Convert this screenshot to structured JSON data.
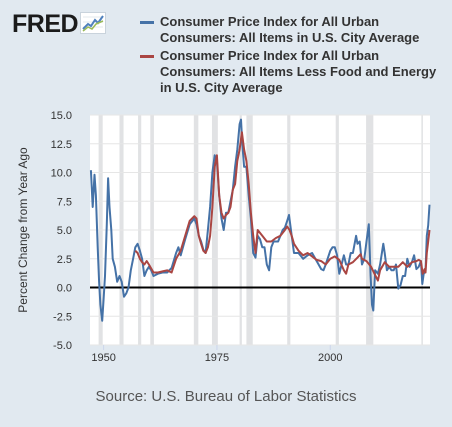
{
  "header": {
    "logo_text": "FRED",
    "logo_icon": "line-chart-icon"
  },
  "legend": [
    {
      "label": "Consumer Price Index for All Urban Consumers: All Items in U.S. City Average",
      "color": "#4572a7"
    },
    {
      "label": "Consumer Price Index for All Urban Consumers: All Items Less Food and Energy in U.S. City Average",
      "color": "#aa4643"
    }
  ],
  "footer": {
    "source": "Source: U.S. Bureau of Labor Statistics"
  },
  "chart_data": {
    "type": "line",
    "title": "",
    "xlabel": "",
    "ylabel": "Percent Change from Year Ago",
    "xlim": [
      1947,
      2022
    ],
    "ylim": [
      -5.0,
      15.0
    ],
    "yticks": [
      15.0,
      12.5,
      10.0,
      7.5,
      5.0,
      2.5,
      0.0,
      -2.5,
      -5.0
    ],
    "ytick_labels": [
      "15.0",
      "12.5",
      "10.0",
      "7.5",
      "5.0",
      "2.5",
      "0.0",
      "-2.5",
      "-5.0"
    ],
    "xticks": [
      1950,
      1975,
      2000
    ],
    "xtick_labels": [
      "1950",
      "1975",
      "2000"
    ],
    "grid": "horizontal",
    "zero_line": true,
    "recession_shading": [
      [
        1948.9,
        1949.8
      ],
      [
        1953.5,
        1954.4
      ],
      [
        1957.6,
        1958.3
      ],
      [
        1960.3,
        1961.1
      ],
      [
        1969.9,
        1970.9
      ],
      [
        1973.9,
        1975.2
      ],
      [
        1980.0,
        1980.5
      ],
      [
        1981.5,
        1982.9
      ],
      [
        1990.5,
        1991.2
      ],
      [
        2001.2,
        2001.9
      ],
      [
        2007.9,
        2009.5
      ],
      [
        2020.1,
        2020.4
      ]
    ],
    "series": [
      {
        "name": "Consumer Price Index for All Urban Consumers: All Items in U.S. City Average",
        "color": "#4572a7",
        "x": [
          1947.2,
          1947.6,
          1948.0,
          1948.3,
          1948.7,
          1949.0,
          1949.3,
          1949.7,
          1950.0,
          1950.3,
          1950.7,
          1951.0,
          1951.3,
          1951.7,
          1952.0,
          1952.5,
          1953.0,
          1953.5,
          1954.0,
          1954.5,
          1955.0,
          1955.5,
          1956.0,
          1956.5,
          1957.0,
          1957.5,
          1958.0,
          1958.5,
          1959.0,
          1959.5,
          1960.0,
          1960.5,
          1961.0,
          1962.0,
          1963.0,
          1964.0,
          1965.0,
          1966.0,
          1966.5,
          1967.0,
          1968.0,
          1969.0,
          1970.0,
          1970.5,
          1971.0,
          1971.5,
          1972.0,
          1972.5,
          1973.0,
          1973.5,
          1974.0,
          1974.5,
          1975.0,
          1975.5,
          1976.0,
          1976.5,
          1977.0,
          1977.5,
          1978.0,
          1978.5,
          1979.0,
          1979.5,
          1980.0,
          1980.3,
          1980.6,
          1981.0,
          1981.5,
          1982.0,
          1982.5,
          1983.0,
          1983.5,
          1984.0,
          1984.5,
          1985.0,
          1985.5,
          1986.0,
          1986.5,
          1987.0,
          1987.5,
          1988.0,
          1988.5,
          1989.0,
          1989.5,
          1990.0,
          1990.5,
          1990.9,
          1991.5,
          1992.0,
          1993.0,
          1994.0,
          1995.0,
          1996.0,
          1997.0,
          1998.0,
          1998.5,
          1999.0,
          2000.0,
          2000.5,
          2001.0,
          2001.5,
          2002.0,
          2002.5,
          2003.0,
          2003.5,
          2004.0,
          2004.5,
          2005.0,
          2005.7,
          2006.0,
          2006.5,
          2007.0,
          2007.5,
          2008.0,
          2008.5,
          2008.9,
          2009.2,
          2009.5,
          2009.9,
          2010.5,
          2011.0,
          2011.7,
          2012.0,
          2012.5,
          2013.0,
          2013.5,
          2014.0,
          2014.5,
          2015.0,
          2015.5,
          2016.0,
          2016.5,
          2017.0,
          2017.5,
          2018.0,
          2018.5,
          2019.0,
          2019.5,
          2020.0,
          2020.3,
          2020.6,
          2021.0,
          2021.3,
          2021.6,
          2021.9
        ],
        "values": [
          10.2,
          7.0,
          9.8,
          8.0,
          3.5,
          0.5,
          -1.5,
          -2.9,
          -1.0,
          1.0,
          5.5,
          9.5,
          7.0,
          5.0,
          2.5,
          1.8,
          0.5,
          1.0,
          0.5,
          -0.8,
          -0.5,
          0.0,
          1.5,
          2.5,
          3.5,
          3.8,
          3.2,
          2.5,
          1.0,
          1.5,
          1.8,
          1.5,
          1.0,
          1.2,
          1.3,
          1.3,
          1.7,
          3.0,
          3.5,
          2.8,
          4.2,
          5.5,
          6.0,
          5.5,
          4.5,
          4.0,
          3.3,
          3.0,
          5.0,
          7.0,
          10.0,
          11.5,
          11.0,
          8.0,
          6.0,
          5.0,
          6.5,
          6.5,
          7.5,
          8.5,
          10.5,
          12.0,
          14.2,
          14.6,
          12.5,
          10.5,
          10.5,
          8.0,
          6.0,
          3.0,
          2.6,
          4.5,
          4.2,
          3.5,
          3.5,
          2.0,
          1.5,
          3.5,
          4.0,
          4.0,
          4.0,
          4.5,
          5.0,
          5.2,
          5.8,
          6.3,
          4.5,
          3.0,
          3.0,
          2.5,
          2.8,
          3.0,
          2.3,
          1.6,
          1.5,
          2.0,
          3.2,
          3.5,
          3.5,
          2.8,
          1.2,
          2.0,
          2.8,
          2.0,
          2.0,
          3.0,
          3.0,
          4.5,
          3.8,
          4.0,
          2.0,
          2.5,
          4.0,
          5.5,
          1.0,
          -1.5,
          -2.0,
          1.5,
          1.2,
          2.0,
          3.8,
          3.0,
          1.5,
          1.8,
          1.5,
          1.5,
          2.0,
          -0.1,
          0.2,
          1.0,
          1.0,
          2.5,
          1.8,
          2.2,
          2.8,
          1.6,
          1.8,
          2.3,
          0.3,
          1.2,
          1.4,
          4.5,
          5.4,
          7.2
        ]
      },
      {
        "name": "Consumer Price Index for All Urban Consumers: All Items Less Food and Energy in U.S. City Average",
        "color": "#aa4643",
        "x": [
          1957.0,
          1957.5,
          1958.0,
          1958.5,
          1959.0,
          1959.5,
          1960.0,
          1961.0,
          1962.0,
          1963.0,
          1964.0,
          1965.0,
          1966.0,
          1967.0,
          1968.0,
          1969.0,
          1970.0,
          1970.5,
          1971.0,
          1971.5,
          1972.0,
          1972.5,
          1973.0,
          1973.5,
          1974.0,
          1974.5,
          1975.0,
          1975.5,
          1976.0,
          1976.5,
          1977.0,
          1977.5,
          1978.0,
          1978.5,
          1979.0,
          1979.5,
          1980.0,
          1980.5,
          1981.0,
          1981.5,
          1982.0,
          1982.5,
          1983.0,
          1983.5,
          1984.0,
          1985.0,
          1986.0,
          1987.0,
          1988.0,
          1989.0,
          1990.0,
          1990.5,
          1991.0,
          1991.5,
          1992.0,
          1993.0,
          1994.0,
          1995.0,
          1996.0,
          1997.0,
          1998.0,
          1999.0,
          2000.0,
          2001.0,
          2002.0,
          2003.0,
          2003.5,
          2004.0,
          2005.0,
          2006.0,
          2006.7,
          2007.0,
          2008.0,
          2009.0,
          2010.0,
          2010.5,
          2011.0,
          2012.0,
          2013.0,
          2014.0,
          2015.0,
          2016.0,
          2017.0,
          2018.0,
          2019.0,
          2019.5,
          2020.0,
          2020.4,
          2020.8,
          2021.0,
          2021.3,
          2021.6,
          2021.9
        ],
        "values": [
          3.2,
          3.0,
          2.5,
          2.2,
          2.0,
          2.3,
          2.0,
          1.3,
          1.3,
          1.4,
          1.5,
          1.3,
          2.5,
          3.2,
          4.5,
          5.8,
          6.2,
          6.0,
          4.5,
          3.8,
          3.2,
          3.0,
          3.5,
          4.5,
          7.0,
          10.5,
          11.5,
          8.0,
          6.5,
          6.0,
          6.3,
          6.5,
          7.0,
          8.5,
          9.0,
          11.0,
          12.0,
          13.5,
          12.0,
          11.0,
          9.0,
          6.5,
          4.5,
          3.0,
          5.0,
          4.5,
          4.0,
          4.0,
          4.3,
          4.5,
          5.0,
          5.3,
          5.0,
          4.5,
          3.8,
          3.2,
          2.8,
          3.0,
          2.7,
          2.4,
          2.3,
          2.0,
          2.5,
          2.7,
          2.4,
          1.5,
          1.2,
          2.0,
          2.2,
          2.6,
          2.9,
          2.5,
          2.3,
          1.8,
          1.0,
          0.6,
          1.5,
          2.2,
          1.8,
          1.8,
          1.8,
          2.2,
          1.8,
          2.2,
          2.3,
          2.4,
          2.3,
          1.2,
          1.6,
          1.3,
          3.0,
          4.0,
          5.0
        ]
      }
    ]
  }
}
